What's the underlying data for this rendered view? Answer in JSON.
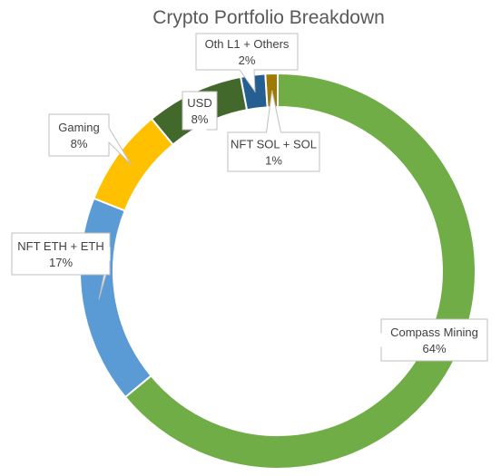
{
  "chart_data": {
    "type": "pie",
    "subtype": "doughnut",
    "title": "Crypto Portfolio Breakdown",
    "slices": [
      {
        "label": "Compass Mining",
        "value": 64,
        "value_label": "64%",
        "color": "#70ad47"
      },
      {
        "label": "NFT ETH + ETH",
        "value": 17,
        "value_label": "17%",
        "color": "#5b9bd5"
      },
      {
        "label": "Gaming",
        "value": 8,
        "value_label": "8%",
        "color": "#ffc000"
      },
      {
        "label": "USD",
        "value": 8,
        "value_label": "8%",
        "color": "#43682b"
      },
      {
        "label": "Oth L1 + Others",
        "value": 2,
        "value_label": "2%",
        "color": "#255e91"
      },
      {
        "label": "NFT SOL + SOL",
        "value": 1,
        "value_label": "1%",
        "color": "#9e7b00"
      }
    ],
    "legend": "none",
    "data_labels": "callouts"
  }
}
